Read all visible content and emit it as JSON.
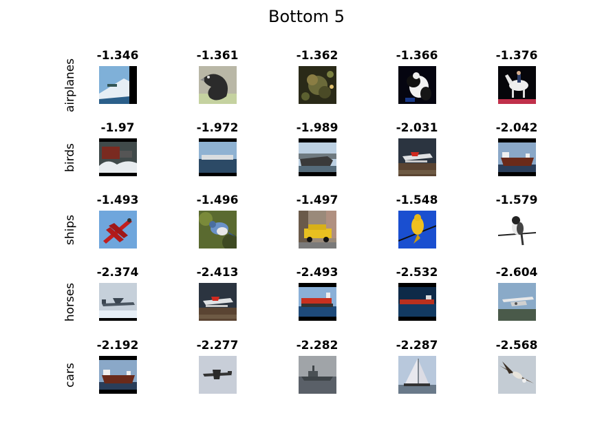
{
  "title": "Bottom 5",
  "rows": [
    {
      "label": "airplanes",
      "cells": [
        {
          "score": "-1.346",
          "image": "ship-bow-thumbnail"
        },
        {
          "score": "-1.361",
          "image": "dark-bird-thumbnail"
        },
        {
          "score": "-1.362",
          "image": "creature-in-foliage-thumbnail"
        },
        {
          "score": "-1.366",
          "image": "black-white-animal-thumbnail"
        },
        {
          "score": "-1.376",
          "image": "white-horse-rider-thumbnail"
        }
      ]
    },
    {
      "label": "birds",
      "cells": [
        {
          "score": "-1.97",
          "image": "boat-spray-thumbnail"
        },
        {
          "score": "-1.972",
          "image": "ship-on-sea-thumbnail"
        },
        {
          "score": "-1.989",
          "image": "ship-harbor-thumbnail"
        },
        {
          "score": "-2.031",
          "image": "red-seaplane-thumbnail"
        },
        {
          "score": "-2.042",
          "image": "cargo-ship-thumbnail"
        }
      ]
    },
    {
      "label": "ships",
      "cells": [
        {
          "score": "-1.493",
          "image": "red-biplane-thumbnail"
        },
        {
          "score": "-1.496",
          "image": "blue-jay-thumbnail"
        },
        {
          "score": "-1.497",
          "image": "yellow-taxi-thumbnail"
        },
        {
          "score": "-1.548",
          "image": "yellow-bird-on-wire-thumbnail"
        },
        {
          "score": "-1.579",
          "image": "bird-on-branch-thumbnail"
        }
      ]
    },
    {
      "label": "horses",
      "cells": [
        {
          "score": "-2.374",
          "image": "military-aircraft-thumbnail"
        },
        {
          "score": "-2.413",
          "image": "red-seaplane-thumbnail"
        },
        {
          "score": "-2.493",
          "image": "container-ship-thumbnail"
        },
        {
          "score": "-2.532",
          "image": "red-ship-thumbnail"
        },
        {
          "score": "-2.604",
          "image": "flying-boat-thumbnail"
        }
      ]
    },
    {
      "label": "cars",
      "cells": [
        {
          "score": "-2.192",
          "image": "cargo-ship-thumbnail"
        },
        {
          "score": "-2.277",
          "image": "aircraft-in-sky-thumbnail"
        },
        {
          "score": "-2.282",
          "image": "warship-thumbnail"
        },
        {
          "score": "-2.287",
          "image": "sailboat-thumbnail"
        },
        {
          "score": "-2.568",
          "image": "bird-of-prey-thumbnail"
        }
      ]
    }
  ]
}
